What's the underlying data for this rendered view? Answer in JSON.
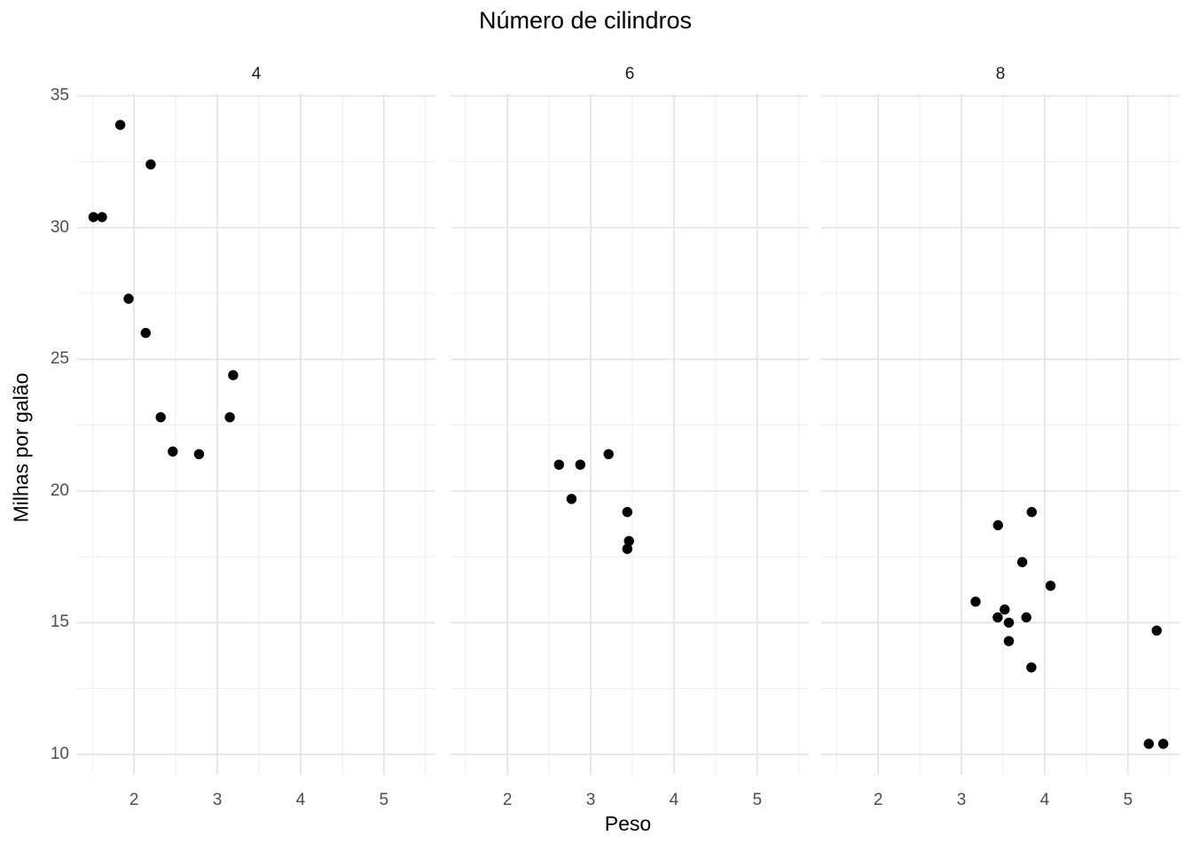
{
  "title": "Número de cilindros",
  "axes": {
    "x_title": "Peso",
    "y_title": "Milhas por galão"
  },
  "chart_data": {
    "type": "scatter",
    "title": "Número de cilindros",
    "xlabel": "Peso",
    "ylabel": "Milhas por galão",
    "facet_variable_title": "Número de cilindros",
    "facet_labels": [
      "4",
      "6",
      "8"
    ],
    "x_ticks": [
      2,
      3,
      4,
      5
    ],
    "y_ticks": [
      35,
      30,
      25,
      20,
      15,
      10
    ],
    "x_minor_ticks": [
      1.5,
      2.5,
      3.5,
      4.5,
      5.5
    ],
    "y_minor_ticks": [
      12.5,
      17.5,
      22.5,
      27.5,
      32.5
    ],
    "xlim": [
      1.317,
      5.62
    ],
    "ylim": [
      9.225,
      35.075
    ],
    "grid": "major-and-minor",
    "legend": "none",
    "series": [
      {
        "name": "4",
        "points": [
          [
            2.32,
            22.8
          ],
          [
            3.19,
            24.4
          ],
          [
            3.15,
            22.8
          ],
          [
            2.2,
            32.4
          ],
          [
            1.615,
            30.4
          ],
          [
            1.835,
            33.9
          ],
          [
            2.465,
            21.5
          ],
          [
            1.935,
            27.3
          ],
          [
            2.14,
            26.0
          ],
          [
            1.513,
            30.4
          ],
          [
            2.78,
            21.4
          ]
        ]
      },
      {
        "name": "6",
        "points": [
          [
            2.62,
            21.0
          ],
          [
            2.875,
            21.0
          ],
          [
            2.77,
            19.7
          ],
          [
            3.215,
            21.4
          ],
          [
            3.44,
            19.2
          ],
          [
            3.46,
            18.1
          ],
          [
            3.44,
            17.8
          ]
        ]
      },
      {
        "name": "8",
        "points": [
          [
            3.44,
            18.7
          ],
          [
            3.57,
            14.3
          ],
          [
            4.07,
            16.4
          ],
          [
            3.73,
            17.3
          ],
          [
            3.78,
            15.2
          ],
          [
            5.25,
            10.4
          ],
          [
            5.424,
            10.4
          ],
          [
            5.345,
            14.7
          ],
          [
            3.52,
            15.5
          ],
          [
            3.435,
            15.2
          ],
          [
            3.84,
            13.3
          ],
          [
            3.845,
            19.2
          ],
          [
            3.17,
            15.8
          ],
          [
            3.57,
            15.0
          ]
        ]
      }
    ],
    "colors": {
      "point": "#000000",
      "grid_major": "#e5e5e5",
      "grid_minor": "#efefef",
      "tick_label": "#4d4d4d",
      "strip_label": "#1a1a1a",
      "title": "#000000",
      "background": "#ffffff"
    }
  }
}
